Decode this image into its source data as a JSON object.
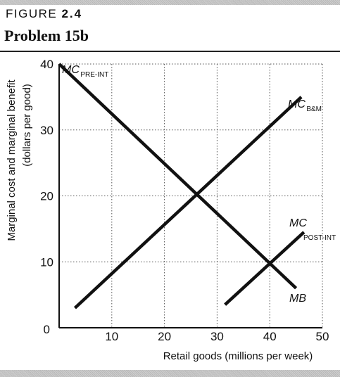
{
  "figure": {
    "label_prefix": "FIGURE",
    "label_number": "2.4",
    "title": "Problem 15b"
  },
  "chart_data": {
    "type": "line",
    "xlabel": "Retail goods (millions per week)",
    "ylabel_line1": "Marginal cost and marginal benefit",
    "ylabel_line2": "(dollars per good)",
    "xlim": [
      0,
      50
    ],
    "ylim": [
      0,
      40
    ],
    "x_ticks": [
      10,
      20,
      30,
      40,
      50
    ],
    "y_ticks": [
      10,
      20,
      30,
      40
    ],
    "origin_label": "0",
    "grid": true,
    "series": [
      {
        "name": "MC PRE-INT",
        "label_main": "MC",
        "label_sub": "PRE-INT",
        "x": [
          0,
          45
        ],
        "y": [
          40,
          6
        ]
      },
      {
        "name": "MC B&M",
        "label_main": "MC",
        "label_sub": "B&M",
        "x": [
          3,
          46
        ],
        "y": [
          3,
          35
        ]
      },
      {
        "name": "MC POST-INT",
        "label_main": "MC",
        "label_sub": "POST-INT",
        "x": [
          31.5,
          46.5
        ],
        "y": [
          3.5,
          14.5
        ]
      },
      {
        "name": "MB",
        "label_main": "MB",
        "label_sub": "",
        "x": [
          0,
          45
        ],
        "y": [
          40,
          6
        ]
      }
    ]
  }
}
